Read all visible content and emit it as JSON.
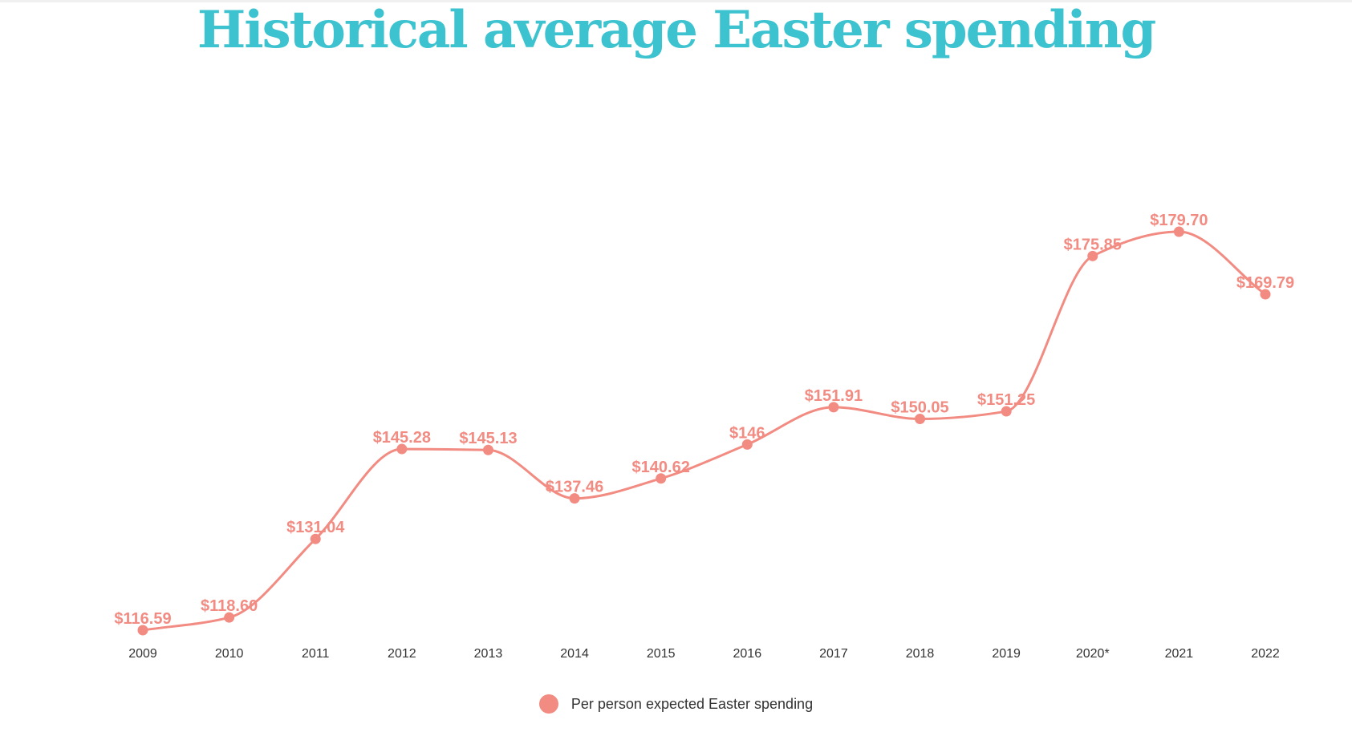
{
  "title": "Historical average Easter spending",
  "colors": {
    "title": "#3cc3cf",
    "series": "#f28b82",
    "label": "#f28b82",
    "tick": "#333333"
  },
  "chart_data": {
    "type": "line",
    "title": "Historical average Easter spending",
    "xlabel": "",
    "ylabel": "",
    "categories": [
      "2009",
      "2010",
      "2011",
      "2012",
      "2013",
      "2014",
      "2015",
      "2016",
      "2017",
      "2018",
      "2019",
      "2020*",
      "2021",
      "2022"
    ],
    "series": [
      {
        "name": "Per person expected Easter spending",
        "values": [
          116.59,
          118.6,
          131.04,
          145.28,
          145.13,
          137.46,
          140.62,
          146,
          151.91,
          150.05,
          151.25,
          175.85,
          179.7,
          169.79
        ],
        "labels": [
          "$116.59",
          "$118.60",
          "$131.04",
          "$145.28",
          "$145.13",
          "$137.46",
          "$140.62",
          "$146",
          "$151.91",
          "$150.05",
          "$151.25",
          "$175.85",
          "$179.70",
          "$169.79"
        ]
      }
    ],
    "ylim": [
      116.59,
      179.7
    ],
    "grid": false,
    "legend_position": "bottom-center",
    "line_style": "smooth"
  }
}
